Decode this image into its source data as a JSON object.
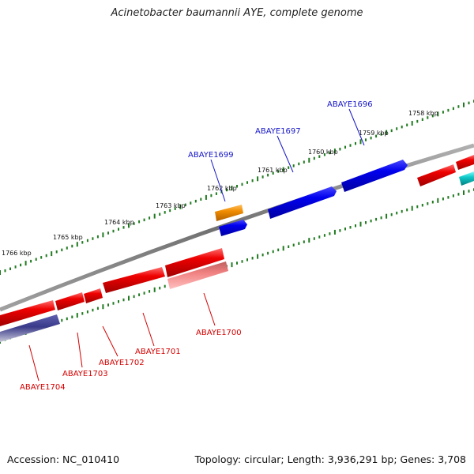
{
  "title": "Acinetobacter baumannii AYE, complete genome",
  "footer": {
    "accession": "Accession: NC_010410",
    "summary": "Topology: circular; Length: 3,936,291 bp; Genes: 3,708"
  },
  "colors": {
    "backbone": "#808080",
    "tick": "#1f7a1f",
    "forward_gene": "#0000ee",
    "reverse_gene": "#ee0000",
    "forward_label": "#1515c8",
    "reverse_label": "#d40000",
    "orange_gene": "#f08c00",
    "pink_gene": "#f08080",
    "navy_gene": "#3a3a8a",
    "cyan_gene": "#10c8c8"
  },
  "scale_labels": [
    "1766 kbp",
    "1765 kbp",
    "1764 kbp",
    "1763 kbp",
    "1762 kbp",
    "1761 kbp",
    "1760 kbp",
    "1759 kbp",
    "1758 kbp"
  ],
  "genes": {
    "forward": [
      "ABAYE1699",
      "ABAYE1697",
      "ABAYE1696"
    ],
    "reverse": [
      "ABAYE1704",
      "ABAYE1703",
      "ABAYE1702",
      "ABAYE1701",
      "ABAYE1700"
    ]
  }
}
